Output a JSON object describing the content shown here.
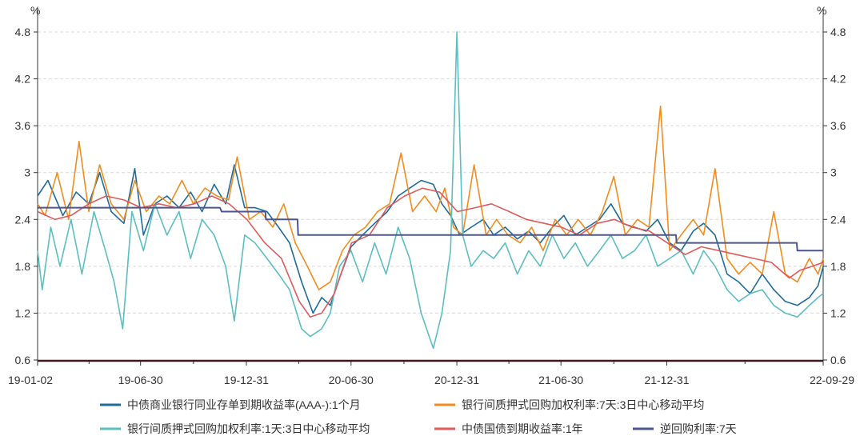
{
  "chart_data": {
    "type": "line",
    "title": "",
    "y_unit_left": "%",
    "y_unit_right": "%",
    "ylim": [
      0.6,
      4.8
    ],
    "yticks": [
      "0.6",
      "1.2",
      "1.8",
      "2.4",
      "3",
      "3.6",
      "4.2",
      "4.8"
    ],
    "xlim": [
      "2019-01-02",
      "2022-09-29"
    ],
    "xtick_labels": [
      "19-01-02",
      "19-06-30",
      "19-12-31",
      "20-06-30",
      "20-12-31",
      "21-06-30",
      "21-12-31",
      "22-09-29"
    ],
    "xtick_dates": [
      "2019-01-02",
      "2019-06-30",
      "2019-12-31",
      "2020-06-30",
      "2020-12-31",
      "2021-06-30",
      "2021-12-31",
      "2022-09-29"
    ],
    "grid": "horizontal-dashed",
    "legend_position": "bottom",
    "series": [
      {
        "name": "中债商业银行同业存单到期收益率(AAA-):1个月",
        "color": "#1f6b9a",
        "points": [
          [
            "2019-01-02",
            2.7
          ],
          [
            "2019-01-20",
            2.9
          ],
          [
            "2019-02-15",
            2.45
          ],
          [
            "2019-03-10",
            2.75
          ],
          [
            "2019-04-01",
            2.6
          ],
          [
            "2019-04-20",
            3.0
          ],
          [
            "2019-05-10",
            2.5
          ],
          [
            "2019-06-01",
            2.35
          ],
          [
            "2019-06-20",
            3.05
          ],
          [
            "2019-07-05",
            2.2
          ],
          [
            "2019-07-25",
            2.6
          ],
          [
            "2019-08-15",
            2.7
          ],
          [
            "2019-09-05",
            2.55
          ],
          [
            "2019-09-25",
            2.75
          ],
          [
            "2019-10-15",
            2.5
          ],
          [
            "2019-11-05",
            2.85
          ],
          [
            "2019-11-25",
            2.6
          ],
          [
            "2019-12-10",
            3.1
          ],
          [
            "2019-12-28",
            2.55
          ],
          [
            "2020-01-15",
            2.55
          ],
          [
            "2020-02-05",
            2.5
          ],
          [
            "2020-02-25",
            2.3
          ],
          [
            "2020-03-15",
            2.1
          ],
          [
            "2020-04-05",
            1.6
          ],
          [
            "2020-04-25",
            1.2
          ],
          [
            "2020-05-10",
            1.4
          ],
          [
            "2020-05-25",
            1.3
          ],
          [
            "2020-06-10",
            1.65
          ],
          [
            "2020-06-30",
            2.05
          ],
          [
            "2020-07-20",
            2.2
          ],
          [
            "2020-08-10",
            2.35
          ],
          [
            "2020-09-01",
            2.5
          ],
          [
            "2020-09-20",
            2.7
          ],
          [
            "2020-10-10",
            2.8
          ],
          [
            "2020-10-30",
            2.9
          ],
          [
            "2020-11-20",
            2.85
          ],
          [
            "2020-12-05",
            2.6
          ],
          [
            "2020-12-20",
            2.45
          ],
          [
            "2021-01-05",
            2.2
          ],
          [
            "2021-01-25",
            2.3
          ],
          [
            "2021-02-15",
            2.4
          ],
          [
            "2021-03-05",
            2.2
          ],
          [
            "2021-03-25",
            2.3
          ],
          [
            "2021-04-15",
            2.15
          ],
          [
            "2021-05-05",
            2.25
          ],
          [
            "2021-05-25",
            2.1
          ],
          [
            "2021-06-15",
            2.3
          ],
          [
            "2021-07-05",
            2.45
          ],
          [
            "2021-07-25",
            2.2
          ],
          [
            "2021-08-15",
            2.3
          ],
          [
            "2021-09-05",
            2.4
          ],
          [
            "2021-09-25",
            2.6
          ],
          [
            "2021-10-15",
            2.35
          ],
          [
            "2021-11-05",
            2.3
          ],
          [
            "2021-11-25",
            2.25
          ],
          [
            "2021-12-15",
            2.4
          ],
          [
            "2022-01-05",
            2.1
          ],
          [
            "2022-01-25",
            2.0
          ],
          [
            "2022-02-15",
            2.25
          ],
          [
            "2022-03-05",
            2.35
          ],
          [
            "2022-03-25",
            2.2
          ],
          [
            "2022-04-15",
            1.7
          ],
          [
            "2022-05-05",
            1.6
          ],
          [
            "2022-05-25",
            1.45
          ],
          [
            "2022-06-15",
            1.7
          ],
          [
            "2022-07-05",
            1.5
          ],
          [
            "2022-07-25",
            1.35
          ],
          [
            "2022-08-15",
            1.3
          ],
          [
            "2022-09-05",
            1.4
          ],
          [
            "2022-09-20",
            1.55
          ],
          [
            "2022-09-29",
            1.8
          ]
        ]
      },
      {
        "name": "银行间质押式回购加权利率:7天:3日中心移动平均",
        "color": "#f28c1e",
        "points": [
          [
            "2019-01-02",
            2.6
          ],
          [
            "2019-01-15",
            2.45
          ],
          [
            "2019-02-05",
            3.0
          ],
          [
            "2019-02-25",
            2.4
          ],
          [
            "2019-03-15",
            3.4
          ],
          [
            "2019-04-01",
            2.5
          ],
          [
            "2019-04-20",
            3.1
          ],
          [
            "2019-05-10",
            2.6
          ],
          [
            "2019-06-01",
            2.4
          ],
          [
            "2019-06-20",
            2.9
          ],
          [
            "2019-07-10",
            2.5
          ],
          [
            "2019-08-01",
            2.7
          ],
          [
            "2019-08-20",
            2.6
          ],
          [
            "2019-09-10",
            2.9
          ],
          [
            "2019-09-30",
            2.6
          ],
          [
            "2019-10-20",
            2.8
          ],
          [
            "2019-11-10",
            2.7
          ],
          [
            "2019-11-30",
            2.65
          ],
          [
            "2019-12-15",
            3.2
          ],
          [
            "2020-01-05",
            2.4
          ],
          [
            "2020-01-25",
            2.5
          ],
          [
            "2020-02-15",
            2.3
          ],
          [
            "2020-03-05",
            2.6
          ],
          [
            "2020-03-25",
            2.1
          ],
          [
            "2020-04-15",
            1.8
          ],
          [
            "2020-05-05",
            1.5
          ],
          [
            "2020-05-25",
            1.6
          ],
          [
            "2020-06-15",
            2.0
          ],
          [
            "2020-07-05",
            2.2
          ],
          [
            "2020-07-25",
            2.3
          ],
          [
            "2020-08-15",
            2.5
          ],
          [
            "2020-09-05",
            2.6
          ],
          [
            "2020-09-25",
            3.25
          ],
          [
            "2020-10-15",
            2.5
          ],
          [
            "2020-11-05",
            2.7
          ],
          [
            "2020-11-25",
            2.5
          ],
          [
            "2020-12-10",
            2.8
          ],
          [
            "2020-12-25",
            2.3
          ],
          [
            "2021-01-10",
            2.2
          ],
          [
            "2021-01-30",
            3.1
          ],
          [
            "2021-02-20",
            2.2
          ],
          [
            "2021-03-10",
            2.4
          ],
          [
            "2021-03-30",
            2.2
          ],
          [
            "2021-04-20",
            2.1
          ],
          [
            "2021-05-10",
            2.3
          ],
          [
            "2021-05-30",
            2.0
          ],
          [
            "2021-06-20",
            2.4
          ],
          [
            "2021-07-10",
            2.2
          ],
          [
            "2021-07-30",
            2.4
          ],
          [
            "2021-08-20",
            2.2
          ],
          [
            "2021-09-10",
            2.5
          ],
          [
            "2021-09-30",
            2.95
          ],
          [
            "2021-10-20",
            2.2
          ],
          [
            "2021-11-10",
            2.4
          ],
          [
            "2021-11-30",
            2.3
          ],
          [
            "2021-12-20",
            3.85
          ],
          [
            "2022-01-05",
            2.0
          ],
          [
            "2022-01-25",
            2.2
          ],
          [
            "2022-02-15",
            2.4
          ],
          [
            "2022-03-05",
            2.2
          ],
          [
            "2022-03-25",
            3.05
          ],
          [
            "2022-04-15",
            1.9
          ],
          [
            "2022-05-05",
            1.7
          ],
          [
            "2022-05-25",
            1.85
          ],
          [
            "2022-06-15",
            1.7
          ],
          [
            "2022-07-05",
            2.5
          ],
          [
            "2022-07-25",
            1.7
          ],
          [
            "2022-08-15",
            1.6
          ],
          [
            "2022-09-05",
            1.9
          ],
          [
            "2022-09-20",
            1.7
          ],
          [
            "2022-09-29",
            1.9
          ]
        ]
      },
      {
        "name": "银行间质押式回购加权利率:1天:3日中心移动平均",
        "color": "#5bbfc0",
        "points": [
          [
            "2019-01-02",
            2.0
          ],
          [
            "2019-01-10",
            1.5
          ],
          [
            "2019-01-25",
            2.3
          ],
          [
            "2019-02-10",
            1.8
          ],
          [
            "2019-03-01",
            2.4
          ],
          [
            "2019-03-20",
            1.7
          ],
          [
            "2019-04-10",
            2.5
          ],
          [
            "2019-04-30",
            2.0
          ],
          [
            "2019-05-15",
            1.6
          ],
          [
            "2019-05-30",
            1.0
          ],
          [
            "2019-06-15",
            2.5
          ],
          [
            "2019-07-05",
            2.0
          ],
          [
            "2019-07-25",
            2.6
          ],
          [
            "2019-08-15",
            2.2
          ],
          [
            "2019-09-05",
            2.5
          ],
          [
            "2019-09-25",
            1.9
          ],
          [
            "2019-10-15",
            2.4
          ],
          [
            "2019-11-05",
            2.2
          ],
          [
            "2019-11-25",
            1.8
          ],
          [
            "2019-12-10",
            1.1
          ],
          [
            "2019-12-28",
            2.2
          ],
          [
            "2020-01-15",
            2.1
          ],
          [
            "2020-02-05",
            1.9
          ],
          [
            "2020-02-25",
            1.7
          ],
          [
            "2020-03-15",
            1.5
          ],
          [
            "2020-04-05",
            1.0
          ],
          [
            "2020-04-20",
            0.9
          ],
          [
            "2020-05-10",
            1.0
          ],
          [
            "2020-05-25",
            1.2
          ],
          [
            "2020-06-10",
            1.8
          ],
          [
            "2020-06-30",
            2.0
          ],
          [
            "2020-07-20",
            1.6
          ],
          [
            "2020-08-10",
            2.1
          ],
          [
            "2020-08-30",
            1.7
          ],
          [
            "2020-09-20",
            2.3
          ],
          [
            "2020-10-10",
            1.9
          ],
          [
            "2020-10-30",
            1.2
          ],
          [
            "2020-11-20",
            0.75
          ],
          [
            "2020-12-05",
            1.2
          ],
          [
            "2020-12-20",
            2.0
          ],
          [
            "2020-12-31",
            4.8
          ],
          [
            "2021-01-10",
            2.2
          ],
          [
            "2021-01-25",
            1.8
          ],
          [
            "2021-02-15",
            2.0
          ],
          [
            "2021-03-05",
            1.9
          ],
          [
            "2021-03-25",
            2.1
          ],
          [
            "2021-04-15",
            1.7
          ],
          [
            "2021-05-05",
            2.0
          ],
          [
            "2021-05-25",
            1.8
          ],
          [
            "2021-06-15",
            2.2
          ],
          [
            "2021-07-05",
            1.9
          ],
          [
            "2021-07-25",
            2.1
          ],
          [
            "2021-08-15",
            1.8
          ],
          [
            "2021-09-05",
            2.0
          ],
          [
            "2021-09-25",
            2.2
          ],
          [
            "2021-10-15",
            1.9
          ],
          [
            "2021-11-05",
            2.0
          ],
          [
            "2021-11-25",
            2.2
          ],
          [
            "2021-12-15",
            1.8
          ],
          [
            "2022-01-05",
            1.9
          ],
          [
            "2022-01-25",
            2.0
          ],
          [
            "2022-02-15",
            1.7
          ],
          [
            "2022-03-05",
            2.0
          ],
          [
            "2022-03-25",
            1.8
          ],
          [
            "2022-04-15",
            1.5
          ],
          [
            "2022-05-05",
            1.35
          ],
          [
            "2022-05-25",
            1.45
          ],
          [
            "2022-06-15",
            1.5
          ],
          [
            "2022-07-05",
            1.3
          ],
          [
            "2022-07-25",
            1.2
          ],
          [
            "2022-08-15",
            1.15
          ],
          [
            "2022-09-05",
            1.3
          ],
          [
            "2022-09-20",
            1.4
          ],
          [
            "2022-09-29",
            1.45
          ]
        ]
      },
      {
        "name": "中债国债到期收益率:1年",
        "color": "#e05a5a",
        "points": [
          [
            "2019-01-02",
            2.5
          ],
          [
            "2019-02-01",
            2.4
          ],
          [
            "2019-03-01",
            2.45
          ],
          [
            "2019-04-01",
            2.6
          ],
          [
            "2019-05-01",
            2.7
          ],
          [
            "2019-06-01",
            2.65
          ],
          [
            "2019-07-01",
            2.55
          ],
          [
            "2019-08-01",
            2.6
          ],
          [
            "2019-09-01",
            2.55
          ],
          [
            "2019-10-01",
            2.6
          ],
          [
            "2019-11-01",
            2.7
          ],
          [
            "2019-12-01",
            2.6
          ],
          [
            "2020-01-01",
            2.4
          ],
          [
            "2020-02-01",
            2.1
          ],
          [
            "2020-03-01",
            1.9
          ],
          [
            "2020-04-01",
            1.35
          ],
          [
            "2020-04-20",
            1.15
          ],
          [
            "2020-05-10",
            1.2
          ],
          [
            "2020-06-01",
            1.45
          ],
          [
            "2020-07-01",
            2.1
          ],
          [
            "2020-08-01",
            2.2
          ],
          [
            "2020-09-01",
            2.55
          ],
          [
            "2020-10-01",
            2.7
          ],
          [
            "2020-11-01",
            2.8
          ],
          [
            "2020-12-01",
            2.75
          ],
          [
            "2021-01-01",
            2.5
          ],
          [
            "2021-02-01",
            2.55
          ],
          [
            "2021-03-01",
            2.6
          ],
          [
            "2021-04-01",
            2.5
          ],
          [
            "2021-05-01",
            2.4
          ],
          [
            "2021-06-01",
            2.35
          ],
          [
            "2021-07-01",
            2.3
          ],
          [
            "2021-08-01",
            2.2
          ],
          [
            "2021-09-01",
            2.35
          ],
          [
            "2021-10-01",
            2.4
          ],
          [
            "2021-11-01",
            2.3
          ],
          [
            "2021-12-01",
            2.25
          ],
          [
            "2022-01-01",
            2.1
          ],
          [
            "2022-02-01",
            1.95
          ],
          [
            "2022-03-01",
            2.05
          ],
          [
            "2022-04-01",
            2.0
          ],
          [
            "2022-05-01",
            1.95
          ],
          [
            "2022-06-01",
            1.9
          ],
          [
            "2022-07-01",
            1.85
          ],
          [
            "2022-08-01",
            1.65
          ],
          [
            "2022-08-20",
            1.75
          ],
          [
            "2022-09-10",
            1.8
          ],
          [
            "2022-09-29",
            1.85
          ]
        ]
      },
      {
        "name": "逆回购利率:7天",
        "color": "#4a5694",
        "points": [
          [
            "2019-01-02",
            2.55
          ],
          [
            "2019-11-15",
            2.55
          ],
          [
            "2019-11-18",
            2.5
          ],
          [
            "2020-02-02",
            2.5
          ],
          [
            "2020-02-03",
            2.4
          ],
          [
            "2020-03-29",
            2.4
          ],
          [
            "2020-03-30",
            2.2
          ],
          [
            "2022-01-16",
            2.2
          ],
          [
            "2022-01-17",
            2.1
          ],
          [
            "2022-08-14",
            2.1
          ],
          [
            "2022-08-15",
            2.0
          ],
          [
            "2022-09-29",
            2.0
          ]
        ]
      }
    ]
  }
}
